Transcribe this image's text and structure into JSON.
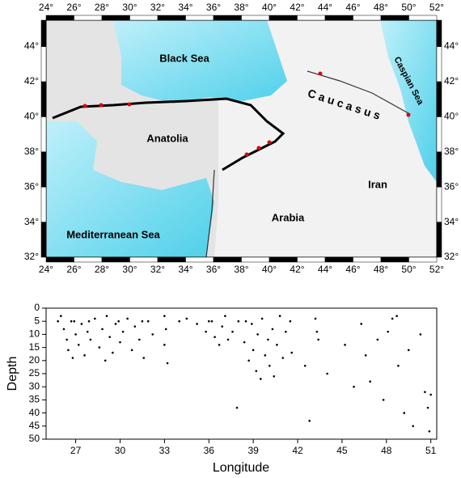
{
  "map": {
    "lonlim": [
      24,
      52
    ],
    "latlim": [
      32,
      45.5
    ],
    "lonticks": [
      {
        "value": 24,
        "label": "24°"
      },
      {
        "value": 26,
        "label": "26°"
      },
      {
        "value": 28,
        "label": "28°"
      },
      {
        "value": 30,
        "label": "30°"
      },
      {
        "value": 32,
        "label": "32°"
      },
      {
        "value": 34,
        "label": "34°"
      },
      {
        "value": 36,
        "label": "36°"
      },
      {
        "value": 38,
        "label": "38°"
      },
      {
        "value": 40,
        "label": "40°"
      },
      {
        "value": 42,
        "label": "42°"
      },
      {
        "value": 44,
        "label": "44°"
      },
      {
        "value": 46,
        "label": "46°"
      },
      {
        "value": 48,
        "label": "48°"
      },
      {
        "value": 50,
        "label": "50°"
      },
      {
        "value": 52,
        "label": "52°"
      }
    ],
    "latticks": [
      {
        "value": 32,
        "label": "32°"
      },
      {
        "value": 34,
        "label": "34°"
      },
      {
        "value": 36,
        "label": "36°"
      },
      {
        "value": 38,
        "label": "38°"
      },
      {
        "value": 40,
        "label": "40°"
      },
      {
        "value": 42,
        "label": "42°"
      },
      {
        "value": 44,
        "label": "44°"
      }
    ],
    "labels": [
      "Black Sea",
      "Caspian Sea",
      "C a u c a s u s",
      "Anatolia",
      "Iran",
      "Arabia",
      "Mediterranean Sea"
    ]
  },
  "chart_data": {
    "type": "scatter",
    "xlabel": "Longitude",
    "ylabel": "Depth",
    "xlim": [
      25,
      51.4
    ],
    "ylim": [
      0,
      50
    ],
    "y_inverted": true,
    "xticks": [
      27,
      30,
      33,
      36,
      39,
      42,
      45,
      48,
      51
    ],
    "yticks": [
      0,
      5,
      10,
      15,
      20,
      25,
      30,
      35,
      40,
      45,
      50
    ],
    "color": "#000000",
    "x": [
      26.0,
      26.2,
      26.4,
      26.5,
      26.7,
      26.8,
      27.0,
      27.2,
      27.4,
      27.6,
      27.8,
      28.0,
      28.3,
      28.6,
      28.8,
      29.0,
      29.1,
      29.3,
      29.5,
      29.7,
      30.0,
      30.2,
      30.5,
      30.8,
      31.0,
      31.3,
      31.6,
      31.9,
      32.2,
      33.0,
      33.1,
      33.0,
      33.2,
      34.5,
      35.2,
      35.8,
      36.2,
      36.4,
      36.7,
      36.9,
      37.1,
      37.3,
      37.6,
      38.0,
      38.4,
      38.7,
      38.9,
      39.0,
      39.2,
      39.3,
      39.5,
      39.6,
      39.8,
      40.0,
      40.1,
      40.3,
      40.4,
      40.6,
      40.8,
      41.0,
      41.2,
      41.6,
      42.5,
      43.2,
      43.3,
      43.4,
      44.0,
      45.2,
      45.8,
      46.3,
      46.6,
      46.9,
      47.4,
      47.8,
      48.1,
      48.4,
      48.7,
      48.8,
      49.2,
      49.5,
      49.8,
      50.3,
      50.6,
      50.8,
      50.9,
      51.0,
      37.9,
      42.8,
      25.8,
      26.9,
      27.9,
      29.9,
      31.5,
      34.0,
      36.0,
      38.5,
      41.5
    ],
    "values": [
      3,
      8,
      12,
      16,
      5,
      19,
      10,
      14,
      6,
      18,
      9,
      12,
      4,
      15,
      8,
      20,
      3,
      11,
      17,
      6,
      13,
      9,
      4,
      16,
      7,
      12,
      19,
      5,
      10,
      3,
      8,
      14,
      21,
      4,
      6,
      9,
      5,
      11,
      14,
      7,
      3,
      12,
      9,
      5,
      13,
      20,
      6,
      16,
      24,
      10,
      27,
      4,
      18,
      12,
      22,
      8,
      26,
      14,
      3,
      19,
      9,
      17,
      22,
      4,
      9,
      12,
      25,
      14,
      30,
      6,
      18,
      28,
      12,
      35,
      9,
      4,
      3,
      22,
      40,
      16,
      45,
      10,
      32,
      38,
      47,
      33,
      38,
      43,
      5,
      5,
      5,
      5,
      5,
      5,
      5,
      5,
      5
    ]
  }
}
